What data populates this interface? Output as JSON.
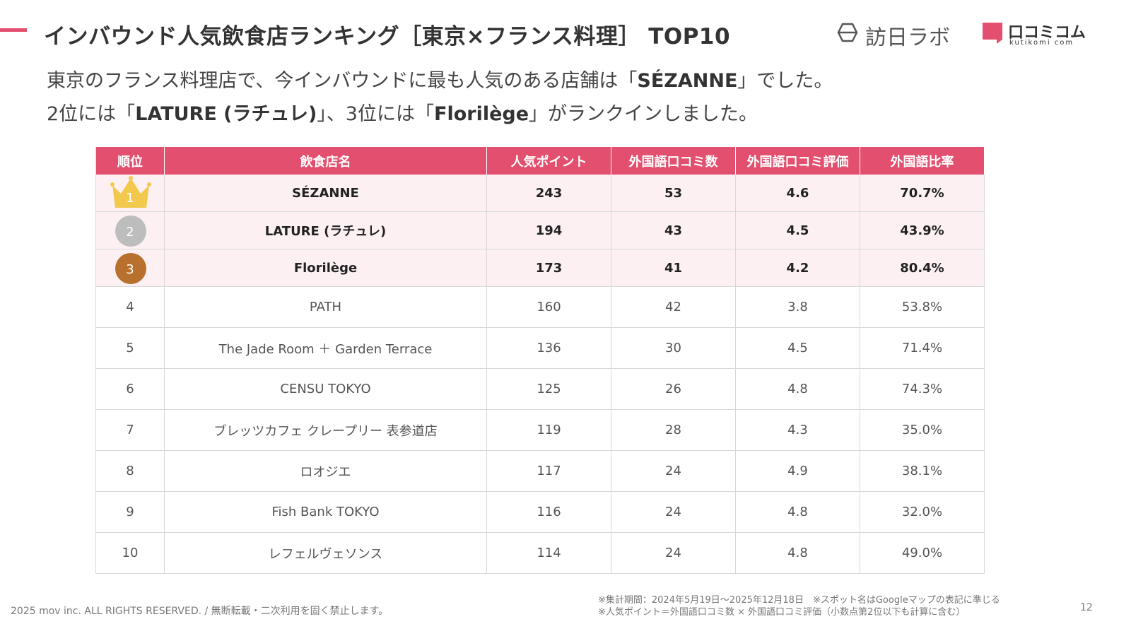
{
  "header": {
    "title": "インバウンド人気飲食店ランキング［東京×フランス料理］ TOP10",
    "logo_left": "訪日ラボ",
    "logo_right": "口コミコム",
    "logo_right_sub": "kutikomi com"
  },
  "subtitle": [
    [
      {
        "text": "東京のフランス料理店で、今インバウンドに最も人気のある店舗は「",
        "bold": false
      },
      {
        "text": "SÉZANNE",
        "bold": true
      },
      {
        "text": "」でした。",
        "bold": false
      }
    ],
    [
      {
        "text": "2位には「",
        "bold": false
      },
      {
        "text": "LATURE (ラチュレ)",
        "bold": true
      },
      {
        "text": "」、3位には「",
        "bold": false
      },
      {
        "text": "Florilège",
        "bold": true
      },
      {
        "text": "」がランクインしました。",
        "bold": false
      }
    ]
  ],
  "table": {
    "columns": [
      "順位",
      "飲食店名",
      "人気ポイント",
      "外国語口コミ数",
      "外国語口コミ評価",
      "外国語比率"
    ],
    "rows": [
      [
        "1",
        "SÉZANNE",
        "243",
        "53",
        "4.6",
        "70.7%"
      ],
      [
        "2",
        "LATURE (ラチュレ)",
        "194",
        "43",
        "4.5",
        "43.9%"
      ],
      [
        "3",
        "Florilège",
        "173",
        "41",
        "4.2",
        "80.4%"
      ],
      [
        "4",
        "PATH",
        "160",
        "42",
        "3.8",
        "53.8%"
      ],
      [
        "5",
        "The Jade Room ＋ Garden Terrace",
        "136",
        "30",
        "4.5",
        "71.4%"
      ],
      [
        "6",
        "CENSU TOKYO",
        "125",
        "26",
        "4.8",
        "74.3%"
      ],
      [
        "7",
        "ブレッツカフェ クレープリー 表参道店",
        "119",
        "28",
        "4.3",
        "35.0%"
      ],
      [
        "8",
        "ロオジエ",
        "117",
        "24",
        "4.9",
        "38.1%"
      ],
      [
        "9",
        "Fish Bank TOKYO",
        "116",
        "24",
        "4.8",
        "32.0%"
      ],
      [
        "10",
        "レフェルヴェソンス",
        "114",
        "24",
        "4.8",
        "49.0%"
      ]
    ]
  },
  "footer": {
    "copyright": "2025 mov inc. ALL RIGHTS RESERVED. / 無断転載・二次利用を固く禁止します。",
    "notes": [
      "※集計期間：2024年5月19日〜2025年12月18日　※スポット名はGoogleマップの表記に準じる",
      "※人気ポイント＝外国語口コミ数 × 外国語口コミ評価（小数点第2位以下も計算に含む）"
    ],
    "page": "12"
  }
}
